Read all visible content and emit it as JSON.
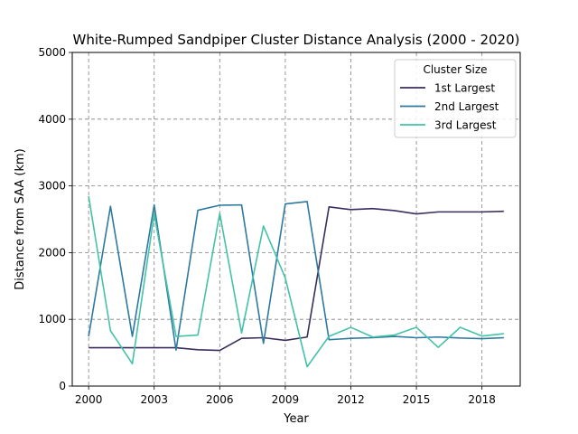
{
  "chart_data": {
    "type": "line",
    "title": "White-Rumped Sandpiper Cluster Distance Analysis (2000 - 2020)",
    "xlabel": "Year",
    "ylabel": "Distance from SAA (km)",
    "xlim": [
      1999.25,
      2019.75
    ],
    "ylim": [
      0,
      5000
    ],
    "xticks": [
      2000,
      2003,
      2006,
      2009,
      2012,
      2015,
      2018
    ],
    "yticks": [
      0,
      1000,
      2000,
      3000,
      4000,
      5000
    ],
    "grid": true,
    "legend": {
      "title": "Cluster Size",
      "placement": "top-right"
    },
    "x": [
      2000,
      2001,
      2002,
      2003,
      2004,
      2005,
      2006,
      2007,
      2008,
      2009,
      2010,
      2011,
      2012,
      2013,
      2014,
      2015,
      2016,
      2017,
      2018,
      2019
    ],
    "series": [
      {
        "name": "1st Largest",
        "color": "#3b2d5e",
        "values": [
          575,
          575,
          575,
          575,
          575,
          545,
          535,
          715,
          725,
          685,
          735,
          2685,
          2645,
          2660,
          2630,
          2580,
          2610,
          2610,
          2610,
          2620
        ]
      },
      {
        "name": "2nd Largest",
        "color": "#2e79a0",
        "values": [
          745,
          2695,
          745,
          2715,
          540,
          2635,
          2710,
          2715,
          640,
          2730,
          2765,
          695,
          715,
          725,
          745,
          725,
          735,
          720,
          710,
          725
        ]
      },
      {
        "name": "3rd Largest",
        "color": "#44c2a8",
        "values": [
          2845,
          830,
          335,
          2580,
          745,
          765,
          2590,
          795,
          2400,
          1620,
          290,
          745,
          880,
          735,
          765,
          880,
          580,
          880,
          750,
          785
        ]
      }
    ]
  }
}
